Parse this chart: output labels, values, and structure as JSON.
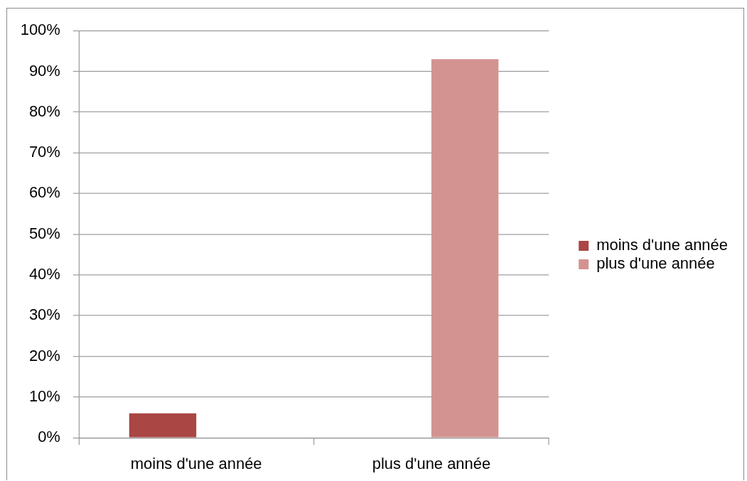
{
  "chart_data": {
    "type": "bar",
    "categories": [
      "moins d'une année",
      "plus d'une année"
    ],
    "series": [
      {
        "name": "moins d'une année",
        "color": "#aa4644",
        "values": [
          6,
          null
        ]
      },
      {
        "name": "plus d'une année",
        "color": "#d39391",
        "values": [
          null,
          93
        ]
      }
    ],
    "ylim": [
      0,
      100
    ],
    "yticks": [
      {
        "value": 0,
        "label": "0%"
      },
      {
        "value": 10,
        "label": "10%"
      },
      {
        "value": 20,
        "label": "20%"
      },
      {
        "value": 30,
        "label": "30%"
      },
      {
        "value": 40,
        "label": "40%"
      },
      {
        "value": 50,
        "label": "50%"
      },
      {
        "value": 60,
        "label": "60%"
      },
      {
        "value": 70,
        "label": "70%"
      },
      {
        "value": 80,
        "label": "80%"
      },
      {
        "value": 90,
        "label": "90%"
      },
      {
        "value": 100,
        "label": "100%"
      }
    ],
    "grid": "y",
    "legend": "right"
  }
}
